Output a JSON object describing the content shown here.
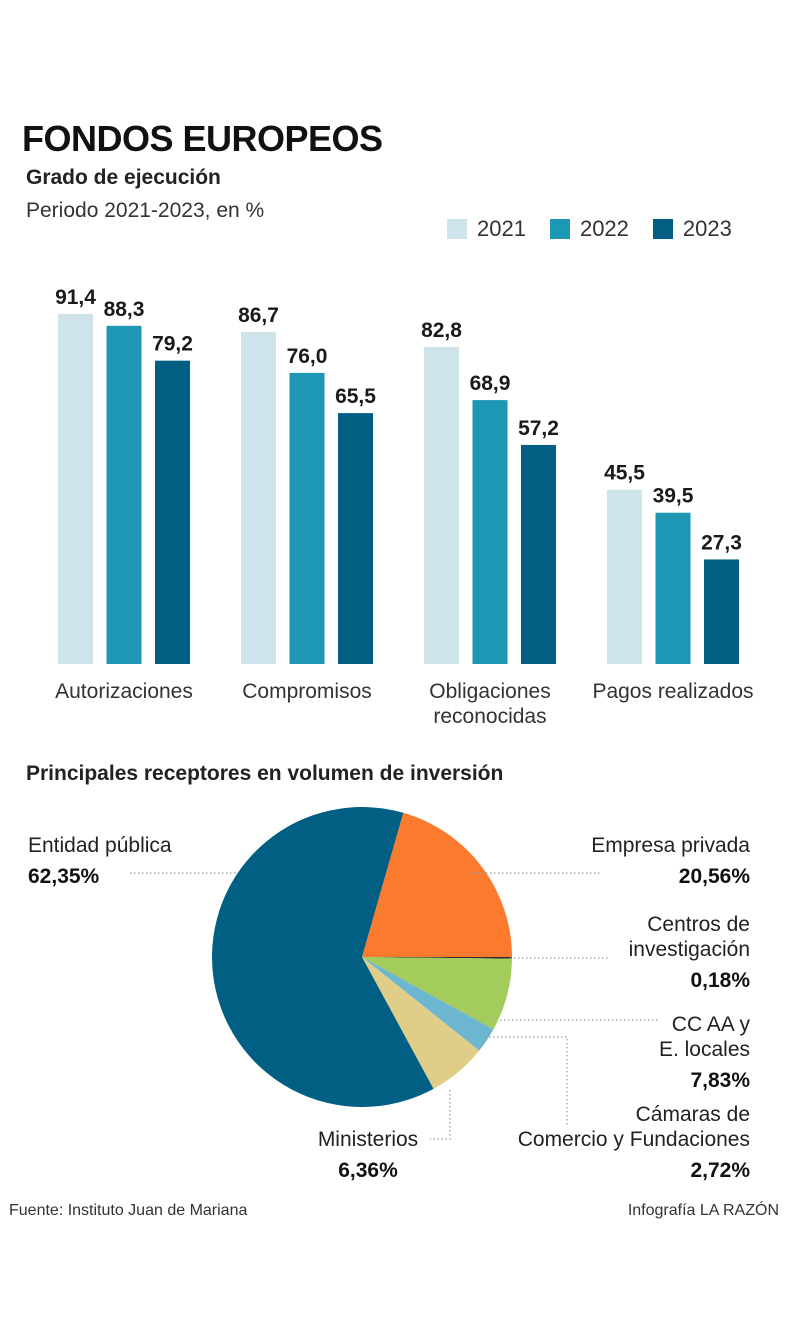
{
  "header": {
    "title": "FONDOS EUROPEOS",
    "subtitle": "Grado de ejecución",
    "period": "Periodo 2021-2023, en %"
  },
  "colors": {
    "y2021": "#cfe3ea",
    "y2022": "#1e97b4",
    "y2023": "#005f83",
    "pie_entidad": "#005f83",
    "pie_empresa": "#fb7a2e",
    "pie_centros": "#2d2d2d",
    "pie_ccaa": "#a3cc5c",
    "pie_camaras": "#6cb7cf",
    "pie_ministerios": "#e0cd88"
  },
  "chart_data": [
    {
      "type": "bar",
      "title": "Grado de ejecución",
      "subtitle": "Periodo 2021-2023, en %",
      "categories": [
        "Autorizaciones",
        "Compromisos",
        "Obligaciones reconocidas",
        "Pagos realizados"
      ],
      "category_lines": [
        [
          "Autorizaciones"
        ],
        [
          "Compromisos"
        ],
        [
          "Obligaciones",
          "reconocidas"
        ],
        [
          "Pagos realizados"
        ]
      ],
      "series": [
        {
          "name": "2021",
          "values": [
            91.4,
            86.7,
            82.8,
            45.5
          ],
          "labels": [
            "91,4",
            "86,7",
            "82,8",
            "45,5"
          ]
        },
        {
          "name": "2022",
          "values": [
            88.3,
            76.0,
            68.9,
            39.5
          ],
          "labels": [
            "88,3",
            "76,0",
            "68,9",
            "39,5"
          ]
        },
        {
          "name": "2023",
          "values": [
            79.2,
            65.5,
            57.2,
            27.3
          ],
          "labels": [
            "79,2",
            "65,5",
            "57,2",
            "27,3"
          ]
        }
      ],
      "ylim": [
        0,
        100
      ],
      "legend": "top-right",
      "grid": false
    },
    {
      "type": "pie",
      "title": "Principales receptores en volumen de inversión",
      "slices": [
        {
          "name": "Entidad pública",
          "value": 62.35,
          "label": "62,35%",
          "name_lines": [
            "Entidad pública"
          ]
        },
        {
          "name": "Empresa privada",
          "value": 20.56,
          "label": "20,56%",
          "name_lines": [
            "Empresa privada"
          ]
        },
        {
          "name": "Centros de investigación",
          "value": 0.18,
          "label": "0,18%",
          "name_lines": [
            "Centros de",
            "investigación"
          ]
        },
        {
          "name": "CC AA y E. locales",
          "value": 7.83,
          "label": "7,83%",
          "name_lines": [
            "CC AA y",
            "E. locales"
          ]
        },
        {
          "name": "Cámaras de Comercio y Fundaciones",
          "value": 2.72,
          "label": "2,72%",
          "name_lines": [
            "Cámaras de",
            "Comercio y Fundaciones"
          ]
        },
        {
          "name": "Ministerios",
          "value": 6.36,
          "label": "6,36%",
          "name_lines": [
            "Ministerios"
          ]
        }
      ]
    }
  ],
  "footer": {
    "source": "Fuente: Instituto Juan de Mariana",
    "credit": "Infografía LA RAZÓN"
  }
}
